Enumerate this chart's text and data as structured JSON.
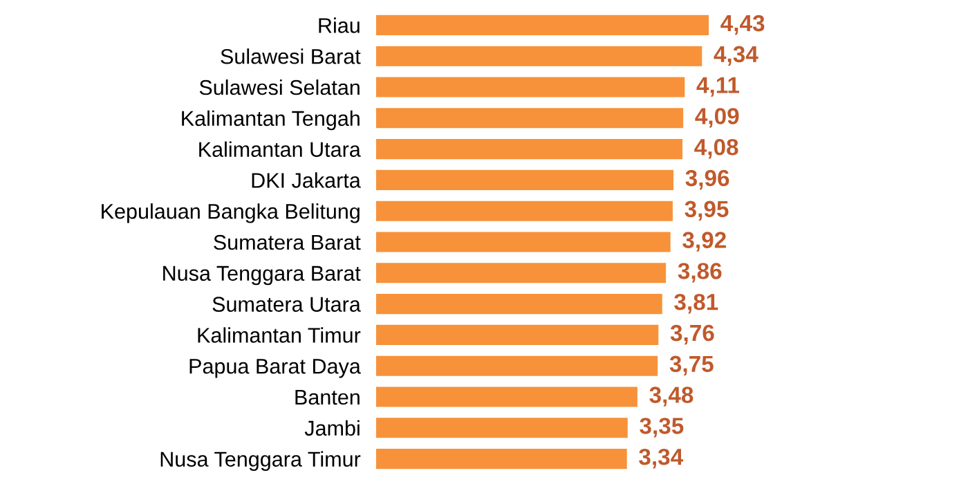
{
  "chart_data": {
    "type": "bar",
    "orientation": "horizontal",
    "categories": [
      "Riau",
      "Sulawesi Barat",
      "Sulawesi Selatan",
      "Kalimantan Tengah",
      "Kalimantan Utara",
      "DKI Jakarta",
      "Kepulauan Bangka Belitung",
      "Sumatera Barat",
      "Nusa Tenggara Barat",
      "Sumatera Utara",
      "Kalimantan Timur",
      "Papua Barat Daya",
      "Banten",
      "Jambi",
      "Nusa Tenggara Timur"
    ],
    "values": [
      4.43,
      4.34,
      4.11,
      4.09,
      4.08,
      3.96,
      3.95,
      3.92,
      3.86,
      3.81,
      3.76,
      3.75,
      3.48,
      3.35,
      3.34
    ],
    "value_labels": [
      "4,43",
      "4,34",
      "4,11",
      "4,09",
      "4,08",
      "3,96",
      "3,95",
      "3,92",
      "3,86",
      "3,81",
      "3,76",
      "3,75",
      "3,48",
      "3,35",
      "3,34"
    ],
    "color": "#f7923a",
    "tick_labels": "y",
    "grid": false,
    "legend": false
  }
}
